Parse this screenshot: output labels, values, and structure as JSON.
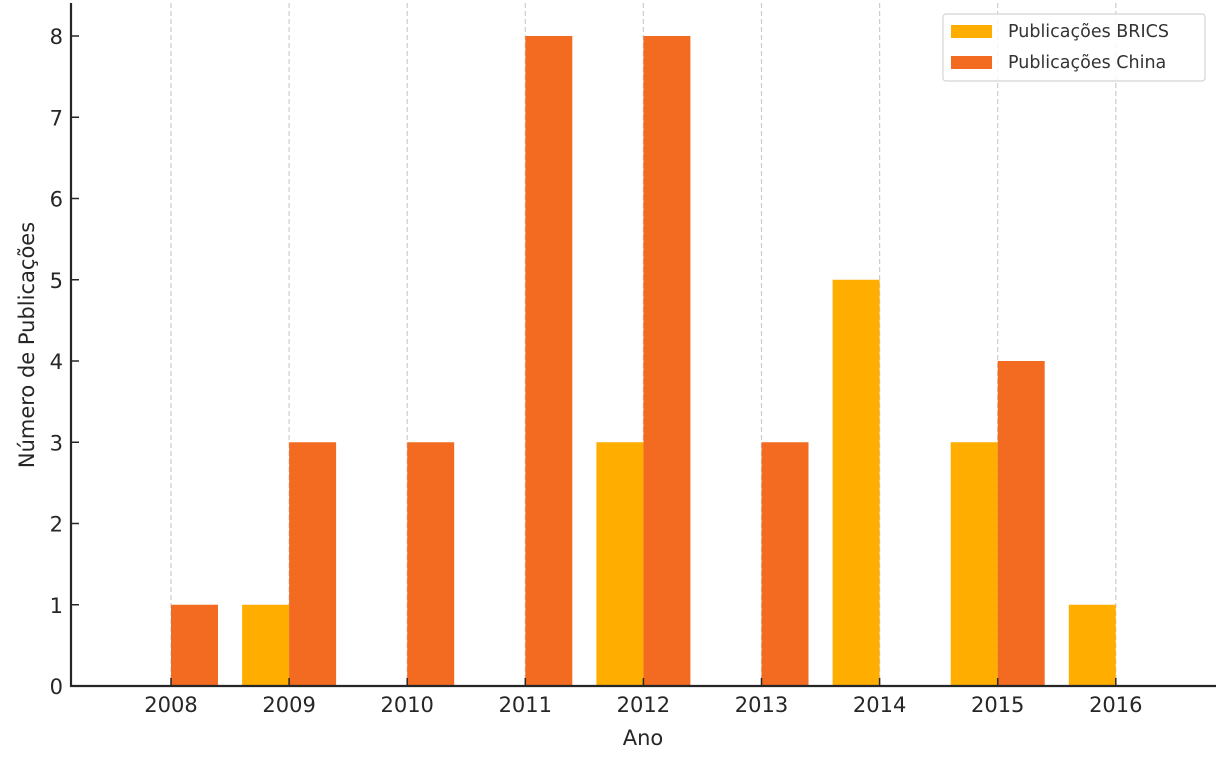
{
  "chart_data": {
    "type": "bar",
    "title": "",
    "xlabel": "Ano",
    "ylabel": "Número de Publicações",
    "categories": [
      "2008",
      "2009",
      "2010",
      "2011",
      "2012",
      "2013",
      "2014",
      "2015",
      "2016"
    ],
    "series": [
      {
        "name": "Publicações BRICS",
        "color": "#FFAE00",
        "values": [
          0,
          1,
          0,
          0,
          3,
          0,
          5,
          3,
          1
        ]
      },
      {
        "name": "Publicações China",
        "color": "#F26B21",
        "values": [
          1,
          3,
          3,
          8,
          8,
          3,
          0,
          4,
          0
        ]
      }
    ],
    "yticks": [
      0,
      1,
      2,
      3,
      4,
      5,
      6,
      7,
      8
    ],
    "ylim": [
      0,
      8.4
    ],
    "grid": {
      "x": true,
      "y": false,
      "style": "dashed",
      "color": "#cccccc"
    },
    "legend_position": "upper right"
  }
}
